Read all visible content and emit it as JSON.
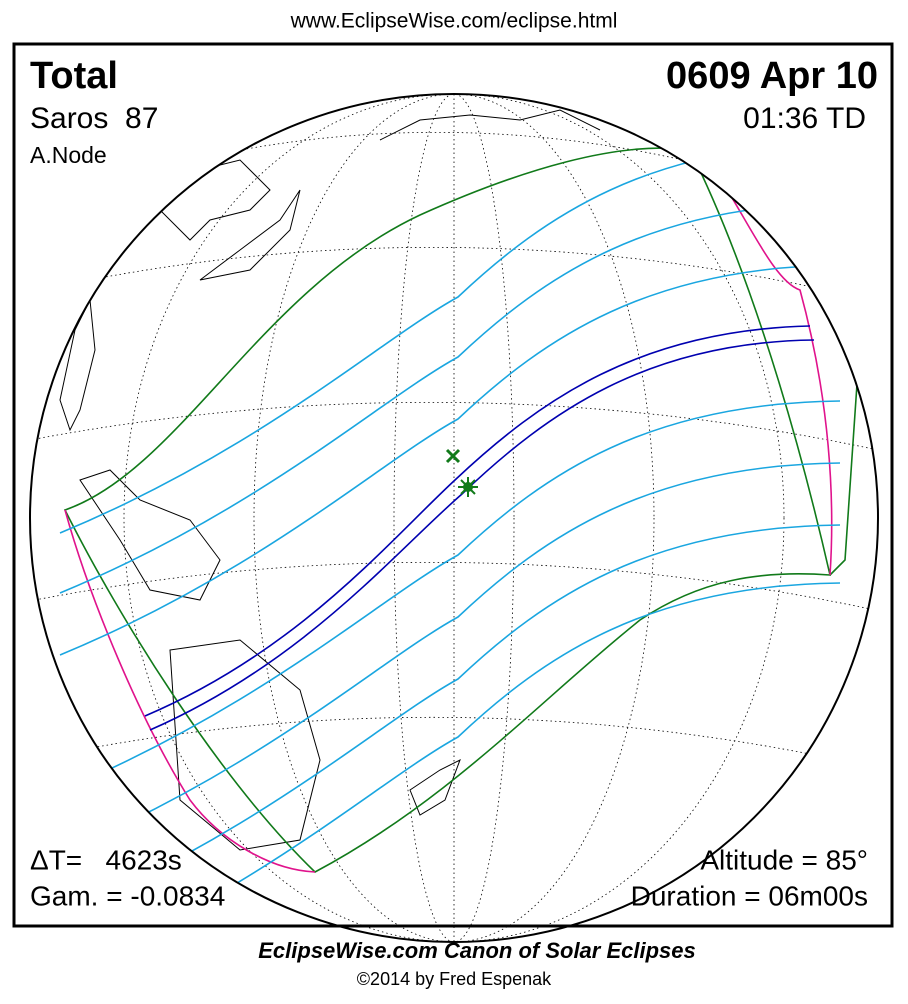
{
  "header": {
    "url": "www.EclipseWise.com/eclipse.html"
  },
  "panel": {
    "type": "Total",
    "date": "0609 Apr 10",
    "saros": "Saros  87",
    "time": "01:36 TD",
    "node": "A.Node",
    "delta_t": "ΔT=   4623s",
    "gamma": "Gam. = -0.0834",
    "altitude": "Altitude = 85°",
    "duration": "Duration = 06m00s"
  },
  "footer": {
    "title": "EclipseWise.com Canon of Solar Eclipses",
    "credit": "©2014 by Fred Espenak"
  }
}
